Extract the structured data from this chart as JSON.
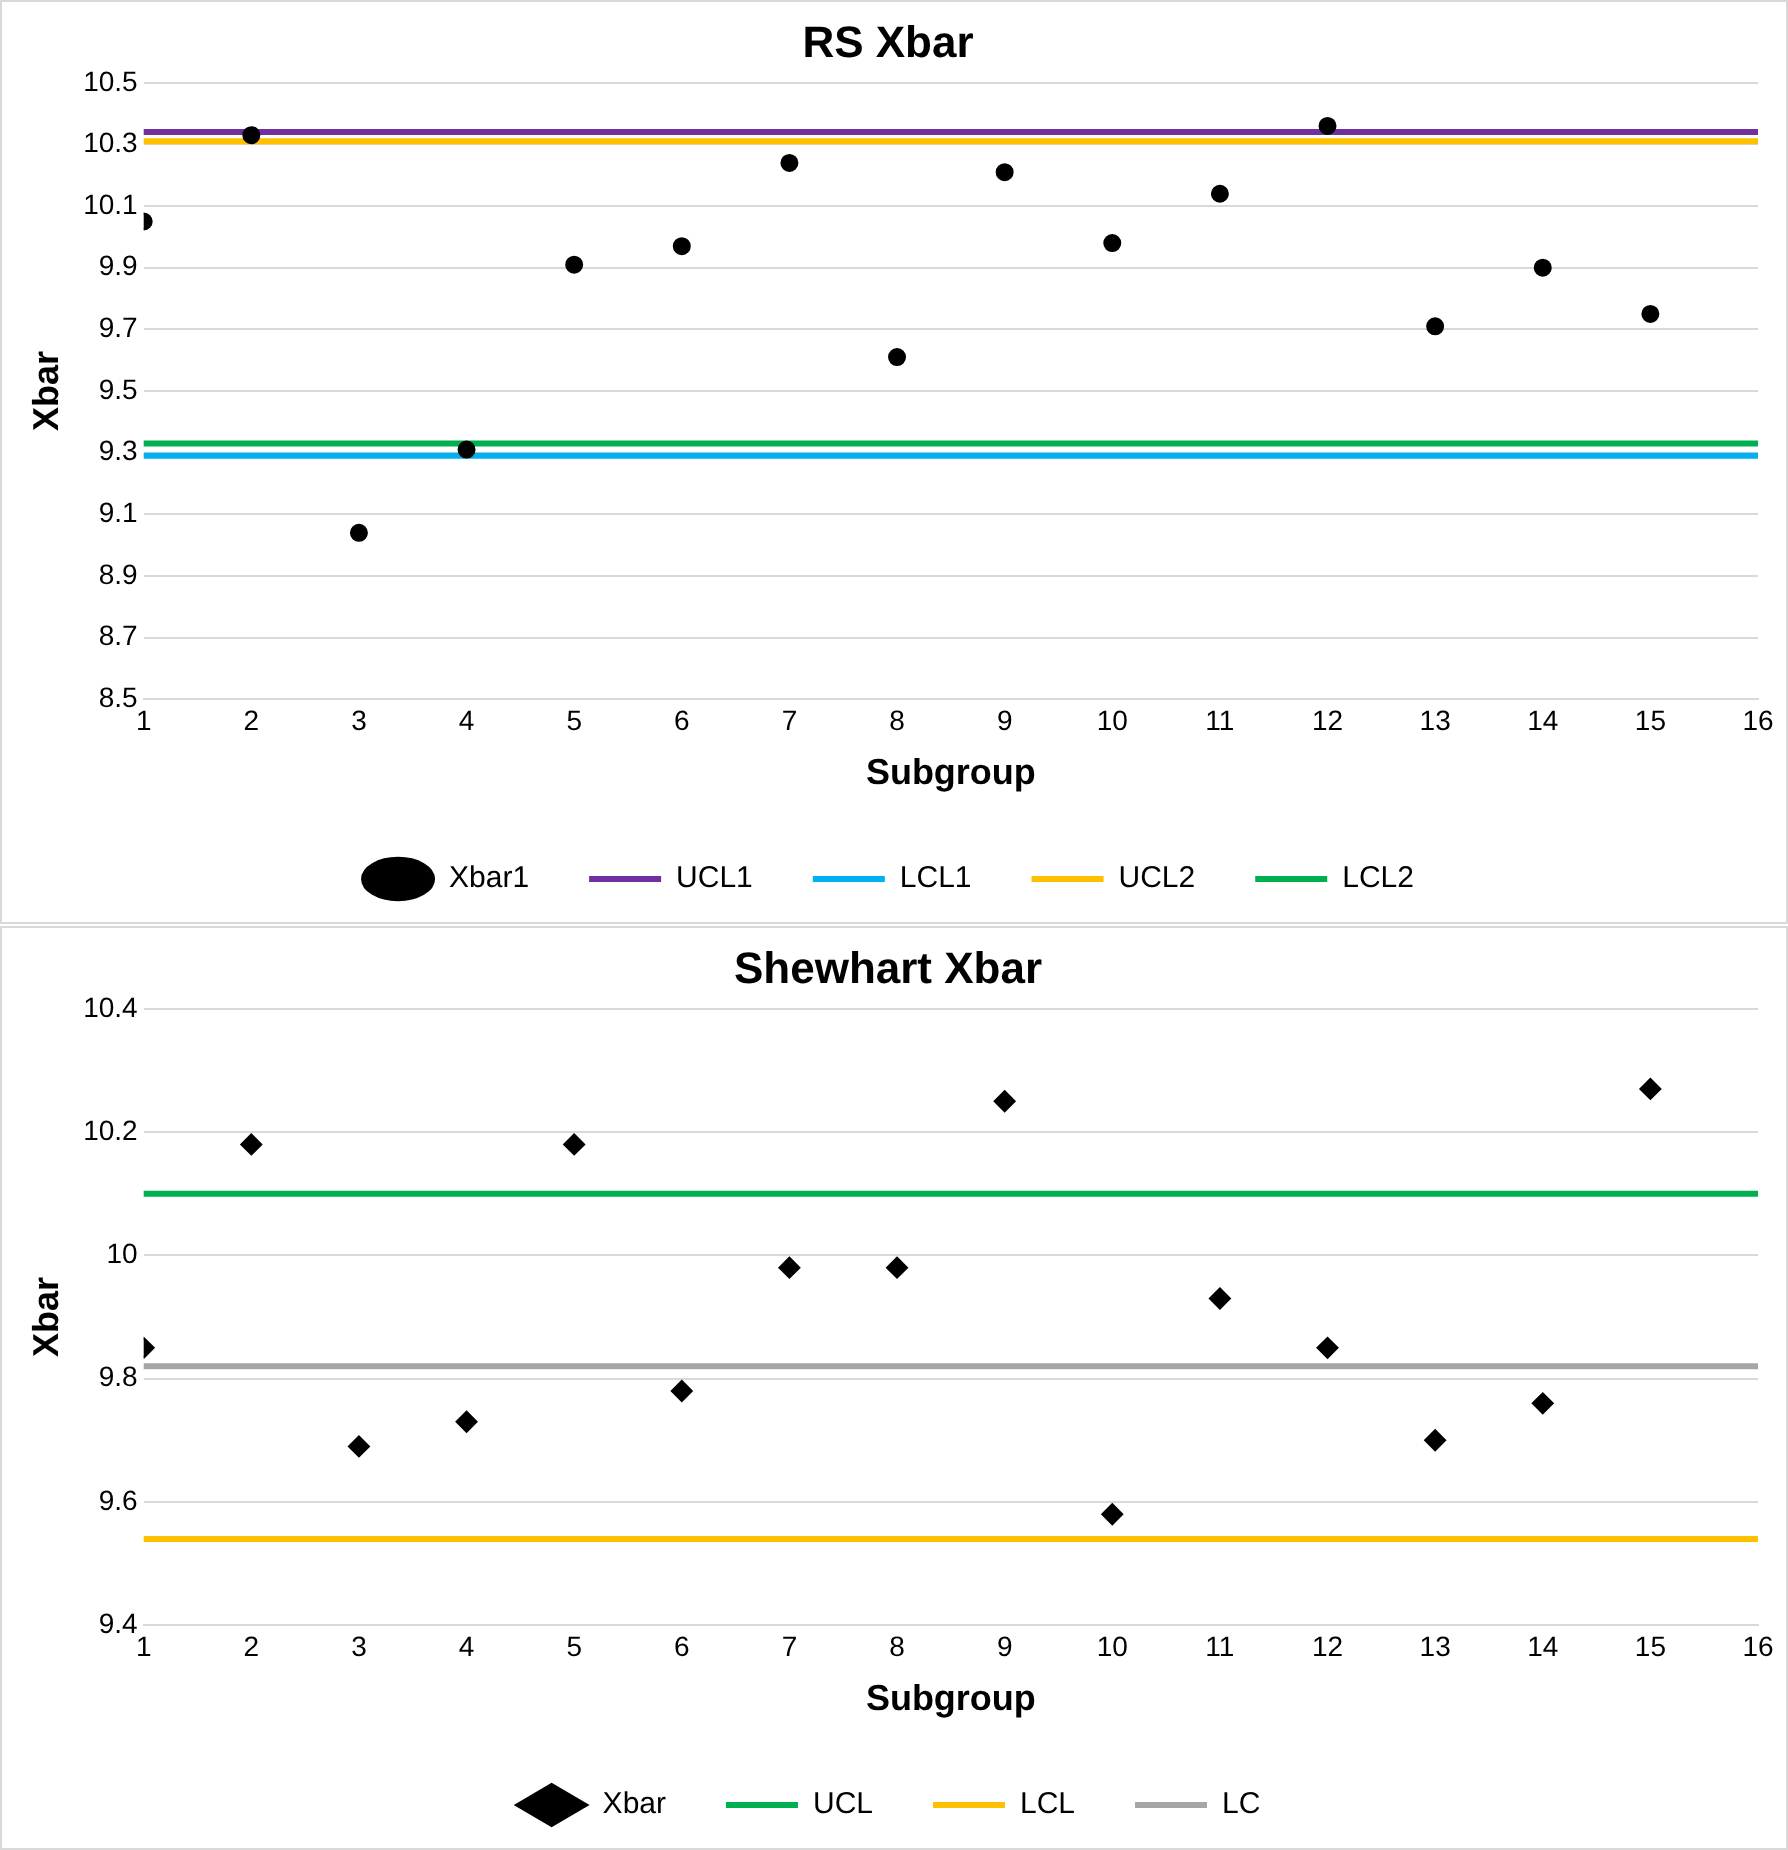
{
  "chart_data": [
    {
      "type": "scatter",
      "title": "RS Xbar",
      "xlabel": "Subgroup",
      "ylabel": "Xbar",
      "x": [
        1,
        2,
        3,
        4,
        5,
        6,
        7,
        8,
        9,
        10,
        11,
        12,
        13,
        14,
        15
      ],
      "series": [
        {
          "name": "Xbar1",
          "color": "#000000",
          "marker": "circle",
          "values": [
            10.05,
            10.33,
            9.04,
            9.31,
            9.91,
            9.97,
            10.24,
            9.61,
            10.21,
            9.98,
            10.14,
            10.36,
            9.71,
            9.9,
            9.75
          ]
        }
      ],
      "ref_lines": [
        {
          "axis": "y",
          "value": 10.34,
          "label": "UCL1",
          "color": "#7030a0"
        },
        {
          "axis": "y",
          "value": 9.29,
          "label": "LCL1",
          "color": "#00b0f0"
        },
        {
          "axis": "y",
          "value": 10.31,
          "label": "UCL2",
          "color": "#ffc000"
        },
        {
          "axis": "y",
          "value": 9.33,
          "label": "LCL2",
          "color": "#00b050"
        }
      ],
      "xlim": [
        1,
        16
      ],
      "xticks": [
        1,
        2,
        3,
        4,
        5,
        6,
        7,
        8,
        9,
        10,
        11,
        12,
        13,
        14,
        15,
        16
      ],
      "ylim": [
        8.5,
        10.5
      ],
      "yticks": [
        8.5,
        8.7,
        8.9,
        9.1,
        9.3,
        9.5,
        9.7,
        9.9,
        10.1,
        10.3,
        10.5
      ],
      "grid": "y",
      "legend": "bottom"
    },
    {
      "type": "scatter",
      "title": "Shewhart Xbar",
      "xlabel": "Subgroup",
      "ylabel": "Xbar",
      "x": [
        1,
        2,
        3,
        4,
        5,
        6,
        7,
        8,
        9,
        10,
        11,
        12,
        13,
        14,
        15
      ],
      "series": [
        {
          "name": "Xbar",
          "color": "#000000",
          "marker": "diamond",
          "values": [
            9.85,
            10.18,
            9.69,
            9.73,
            10.18,
            9.78,
            9.98,
            9.98,
            10.25,
            9.58,
            9.93,
            9.85,
            9.7,
            9.76,
            10.27
          ]
        }
      ],
      "ref_lines": [
        {
          "axis": "y",
          "value": 10.1,
          "label": "UCL",
          "color": "#00b050"
        },
        {
          "axis": "y",
          "value": 9.54,
          "label": "LCL",
          "color": "#ffc000"
        },
        {
          "axis": "y",
          "value": 9.82,
          "label": "LC",
          "color": "#a6a6a6"
        }
      ],
      "xlim": [
        1,
        16
      ],
      "xticks": [
        1,
        2,
        3,
        4,
        5,
        6,
        7,
        8,
        9,
        10,
        11,
        12,
        13,
        14,
        15,
        16
      ],
      "ylim": [
        9.4,
        10.4
      ],
      "yticks": [
        9.4,
        9.6,
        9.8,
        10,
        10.2,
        10.4
      ],
      "grid": "y",
      "legend": "bottom"
    }
  ]
}
